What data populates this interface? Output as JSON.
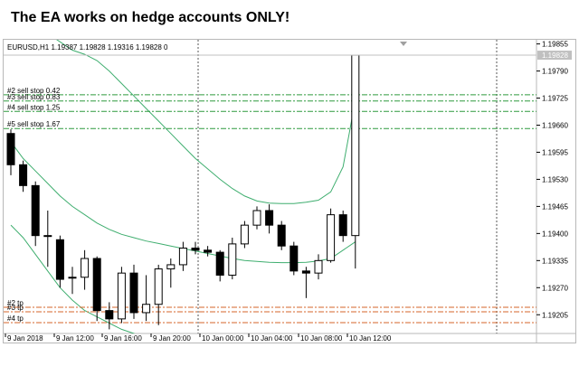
{
  "banner": {
    "title": "The EA works on hedge accounts ONLY!"
  },
  "chart": {
    "symbol_line": "EURUSD,H1  1.19387 1.19828 1.19316 1.19828  0",
    "current_price_label": "1.19828"
  },
  "colors": {
    "background": "#ffffff",
    "bull_candle": "#ffffff",
    "bear_candle": "#000000",
    "candle_outline": "#000000",
    "band": "#3fae6f",
    "sell_stop_line": "#2e9a3e",
    "tp_line": "#d4652a",
    "period_separator": "#555555",
    "price_marker_bg": "#c0c0c0"
  },
  "chart_data": {
    "type": "candlestick",
    "symbol": "EURUSD",
    "timeframe": "H1",
    "ylim": [
      1.1916,
      1.19865
    ],
    "y_ticks": [
      "1.19855",
      "1.19790",
      "1.19725",
      "1.19660",
      "1.19595",
      "1.19530",
      "1.19465",
      "1.19400",
      "1.19335",
      "1.19270",
      "1.19205"
    ],
    "x_ticks": [
      "9 Jan 2018",
      "9 Jan 12:00",
      "9 Jan 16:00",
      "9 Jan 20:00",
      "10 Jan 00:00",
      "10 Jan 04:00",
      "10 Jan 08:00",
      "10 Jan 12:00"
    ],
    "candles": [
      {
        "o": 1.1964,
        "h": 1.1965,
        "l": 1.1954,
        "c": 1.19565
      },
      {
        "o": 1.19565,
        "h": 1.19575,
        "l": 1.195,
        "c": 1.19515
      },
      {
        "o": 1.19515,
        "h": 1.19525,
        "l": 1.1937,
        "c": 1.19395
      },
      {
        "o": 1.19395,
        "h": 1.19455,
        "l": 1.1932,
        "c": 1.19395
      },
      {
        "o": 1.19385,
        "h": 1.19395,
        "l": 1.1927,
        "c": 1.1929
      },
      {
        "o": 1.19295,
        "h": 1.1932,
        "l": 1.19255,
        "c": 1.19295
      },
      {
        "o": 1.19295,
        "h": 1.1936,
        "l": 1.19265,
        "c": 1.1934
      },
      {
        "o": 1.1934,
        "h": 1.19345,
        "l": 1.1919,
        "c": 1.19215
      },
      {
        "o": 1.19215,
        "h": 1.19235,
        "l": 1.1917,
        "c": 1.19195
      },
      {
        "o": 1.19195,
        "h": 1.1932,
        "l": 1.19185,
        "c": 1.19305
      },
      {
        "o": 1.19305,
        "h": 1.19325,
        "l": 1.19195,
        "c": 1.1921
      },
      {
        "o": 1.1921,
        "h": 1.193,
        "l": 1.1919,
        "c": 1.1923
      },
      {
        "o": 1.1923,
        "h": 1.19325,
        "l": 1.1918,
        "c": 1.19315
      },
      {
        "o": 1.19315,
        "h": 1.1934,
        "l": 1.1927,
        "c": 1.19325
      },
      {
        "o": 1.19325,
        "h": 1.1938,
        "l": 1.1931,
        "c": 1.19365
      },
      {
        "o": 1.19365,
        "h": 1.1938,
        "l": 1.1935,
        "c": 1.1936
      },
      {
        "o": 1.1936,
        "h": 1.1937,
        "l": 1.19345,
        "c": 1.19355
      },
      {
        "o": 1.19355,
        "h": 1.1936,
        "l": 1.19285,
        "c": 1.193
      },
      {
        "o": 1.193,
        "h": 1.1939,
        "l": 1.1929,
        "c": 1.19375
      },
      {
        "o": 1.19375,
        "h": 1.1943,
        "l": 1.19365,
        "c": 1.1942
      },
      {
        "o": 1.1942,
        "h": 1.19465,
        "l": 1.1941,
        "c": 1.19455
      },
      {
        "o": 1.19455,
        "h": 1.1947,
        "l": 1.194,
        "c": 1.1942
      },
      {
        "o": 1.1942,
        "h": 1.1943,
        "l": 1.1936,
        "c": 1.1937
      },
      {
        "o": 1.1937,
        "h": 1.1938,
        "l": 1.193,
        "c": 1.1931
      },
      {
        "o": 1.1931,
        "h": 1.1932,
        "l": 1.19245,
        "c": 1.19305
      },
      {
        "o": 1.19305,
        "h": 1.1935,
        "l": 1.1929,
        "c": 1.19335
      },
      {
        "o": 1.19335,
        "h": 1.1946,
        "l": 1.1933,
        "c": 1.19445
      },
      {
        "o": 1.19445,
        "h": 1.19455,
        "l": 1.1938,
        "c": 1.19395
      },
      {
        "o": 1.19395,
        "h": 1.19828,
        "l": 1.19316,
        "c": 1.19828
      }
    ],
    "sell_stops": [
      {
        "label": "#2 sell stop 0.42",
        "price": 1.19733
      },
      {
        "label": "#3 sell stop 0.83",
        "price": 1.19718
      },
      {
        "label": "#4 sell stop 1.25",
        "price": 1.19693
      },
      {
        "label": "#5 sell stop 1.67",
        "price": 1.19652
      }
    ],
    "take_profits": [
      {
        "label": "#2 tp",
        "price": 1.19223
      },
      {
        "label": "#3 tp",
        "price": 1.19212
      },
      {
        "label": "#4 tp",
        "price": 1.19186
      }
    ],
    "bands": {
      "upper": [
        1.1994,
        1.1993,
        1.199,
        1.1988,
        1.1986,
        1.1984,
        1.1983,
        1.19815,
        1.1979,
        1.1976,
        1.1973,
        1.197,
        1.1967,
        1.1964,
        1.1961,
        1.1958,
        1.19555,
        1.1953,
        1.19508,
        1.1949,
        1.19478,
        1.19473,
        1.19472,
        1.19472,
        1.19475,
        1.1948,
        1.195,
        1.1956,
        1.1972
      ],
      "middle": [
        1.1962,
        1.1958,
        1.1955,
        1.1952,
        1.1949,
        1.19465,
        1.19445,
        1.19425,
        1.1941,
        1.19398,
        1.1939,
        1.19382,
        1.19376,
        1.1937,
        1.19364,
        1.19358,
        1.19352,
        1.19346,
        1.1934,
        1.19335,
        1.19333,
        1.19331,
        1.1933,
        1.1933,
        1.19331,
        1.19334,
        1.1934,
        1.1936,
        1.1938
      ],
      "lower": [
        1.1942,
        1.1939,
        1.1935,
        1.1931,
        1.1927,
        1.1924,
        1.19215,
        1.192,
        1.19185,
        1.1917,
        1.1916,
        1.1915,
        1.1914,
        1.1913,
        1.1912,
        1.1911,
        1.191,
        1.1909,
        1.1908,
        1.19072,
        1.19066,
        1.19063,
        1.19062,
        1.19062,
        1.19064,
        1.1907,
        1.1909,
        1.1913,
        1.1906
      ]
    }
  }
}
